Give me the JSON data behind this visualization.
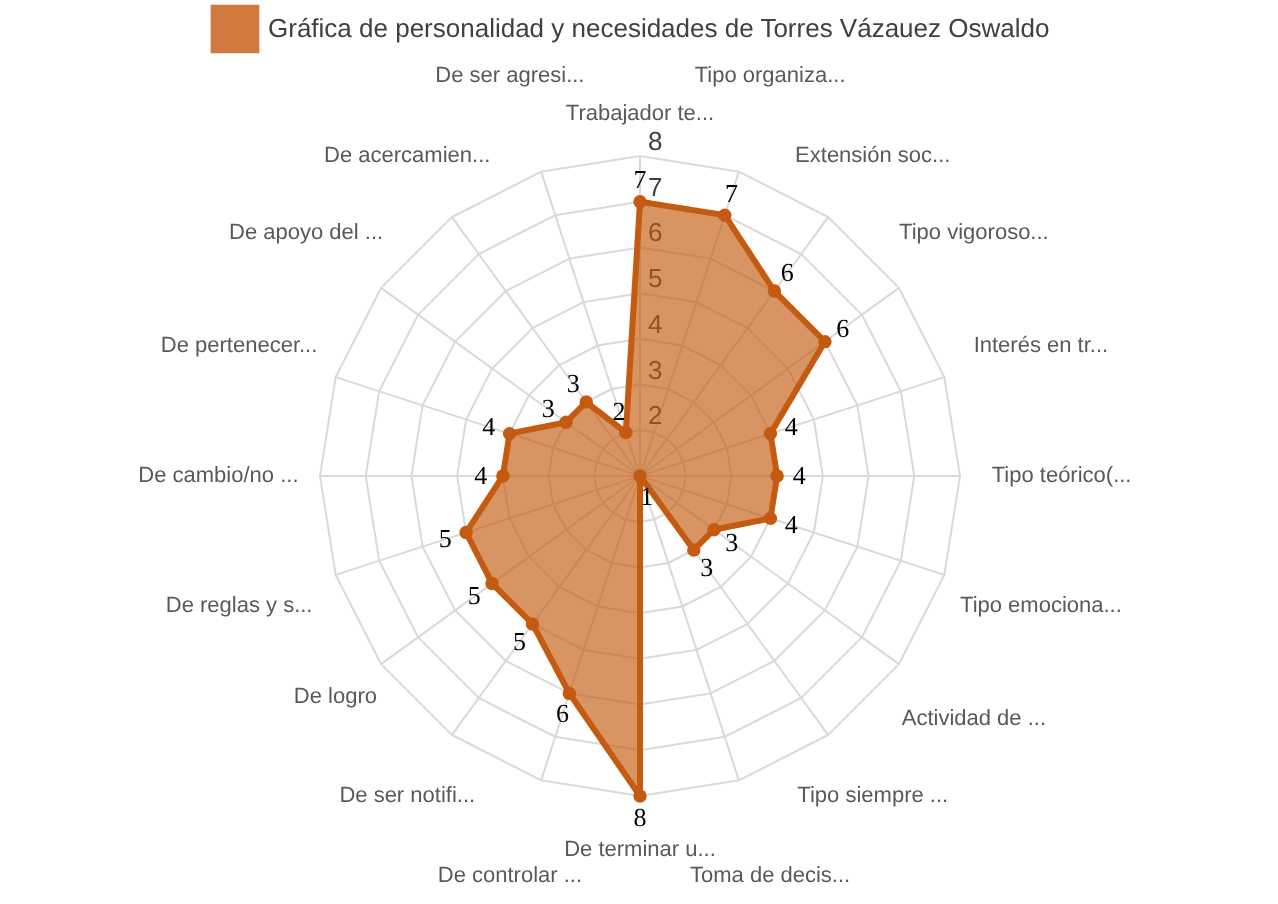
{
  "chart_data": {
    "type": "radar",
    "categories": [
      "Trabajador te...",
      "Tipo organiza...",
      "Extensión soc...",
      "Tipo vigoroso...",
      "Interés en tr...",
      "Tipo teórico(...",
      "Tipo emociona...",
      "Actividad de ...",
      "Tipo siempre ...",
      "Toma de decis...",
      "De terminar u...",
      "De controlar ...",
      "De ser notifi...",
      "De logro",
      "De reglas y s...",
      "De cambio/no ...",
      "De pertenecer...",
      "De apoyo del ...",
      "De acercamien...",
      "De ser agresi..."
    ],
    "series": [
      {
        "name": "Gráfica de personalidad y necesidades de Torres Vázauez Oswaldo",
        "color": "#c55a11",
        "values": [
          7,
          7,
          6,
          6,
          4,
          4,
          4,
          3,
          3,
          1,
          8,
          6,
          5,
          5,
          5,
          4,
          4,
          3,
          3,
          2
        ]
      }
    ],
    "ylim": [
      1,
      8
    ],
    "yticks": [
      2,
      3,
      4,
      5,
      6,
      7,
      8
    ],
    "data_labels": true,
    "legend": "top",
    "grid": true,
    "marker": "circle"
  }
}
